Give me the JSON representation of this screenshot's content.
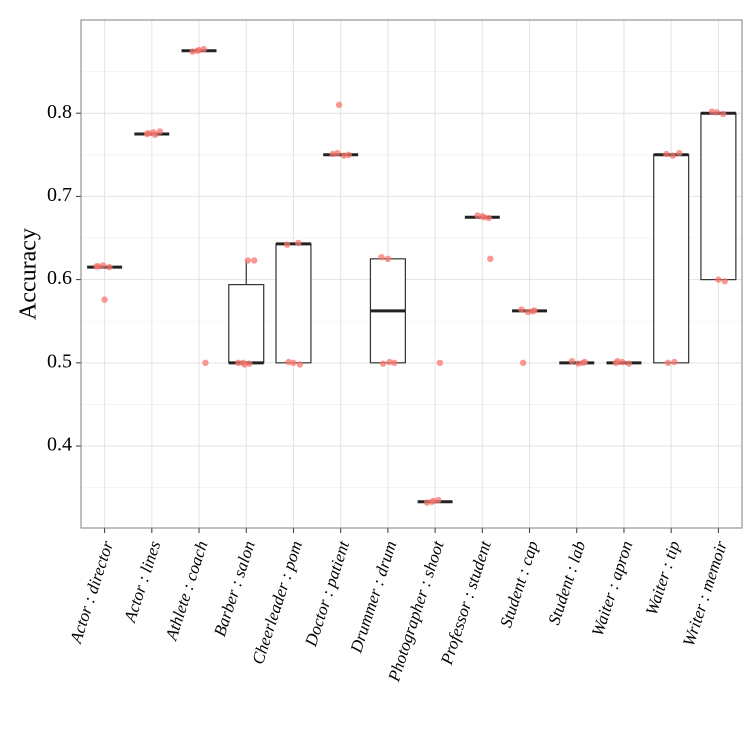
{
  "chart_data": {
    "type": "box",
    "y_label": "Accuracy",
    "categories": [
      "Actor : director",
      "Actor : lines",
      "Athlete : coach",
      "Barber : salon",
      "Cheerleader : pom",
      "Doctor : patient",
      "Drummer : drum",
      "Photographer : shoot",
      "Professor : student",
      "Student : cap",
      "Student : lab",
      "Waiter : apron",
      "Waiter : tip",
      "Writer : memoir"
    ],
    "boxes": [
      {
        "min": 0.615,
        "q1": 0.615,
        "median": 0.615,
        "q3": 0.615,
        "max": 0.615
      },
      {
        "min": 0.775,
        "q1": 0.775,
        "median": 0.775,
        "q3": 0.775,
        "max": 0.775
      },
      {
        "min": 0.875,
        "q1": 0.875,
        "median": 0.875,
        "q3": 0.875,
        "max": 0.875
      },
      {
        "min": 0.5,
        "q1": 0.5,
        "median": 0.5,
        "q3": 0.594,
        "max": 0.623
      },
      {
        "min": 0.5,
        "q1": 0.5,
        "median": 0.643,
        "q3": 0.643,
        "max": 0.643
      },
      {
        "min": 0.75,
        "q1": 0.75,
        "median": 0.75,
        "q3": 0.75,
        "max": 0.75
      },
      {
        "min": 0.5,
        "q1": 0.5,
        "median": 0.5625,
        "q3": 0.625,
        "max": 0.625
      },
      {
        "min": 0.333,
        "q1": 0.333,
        "median": 0.333,
        "q3": 0.333,
        "max": 0.333
      },
      {
        "min": 0.675,
        "q1": 0.675,
        "median": 0.675,
        "q3": 0.675,
        "max": 0.675
      },
      {
        "min": 0.5625,
        "q1": 0.5625,
        "median": 0.5625,
        "q3": 0.5625,
        "max": 0.5625
      },
      {
        "min": 0.5,
        "q1": 0.5,
        "median": 0.5,
        "q3": 0.5,
        "max": 0.5
      },
      {
        "min": 0.5,
        "q1": 0.5,
        "median": 0.5,
        "q3": 0.5,
        "max": 0.5
      },
      {
        "min": 0.5,
        "q1": 0.5,
        "median": 0.75,
        "q3": 0.75,
        "max": 0.75
      },
      {
        "min": 0.6,
        "q1": 0.6,
        "median": 0.8,
        "q3": 0.8,
        "max": 0.8
      }
    ],
    "points": [
      [
        0.616,
        0.617,
        0.615,
        0.616,
        0.576
      ],
      [
        0.775,
        0.777,
        0.778,
        0.776,
        0.774
      ],
      [
        0.875,
        0.877,
        0.874,
        0.876,
        0.5
      ],
      [
        0.623,
        0.623,
        0.5,
        0.499,
        0.5,
        0.498
      ],
      [
        0.644,
        0.642,
        0.5,
        0.498,
        0.501
      ],
      [
        0.75,
        0.752,
        0.749,
        0.751,
        0.81
      ],
      [
        0.627,
        0.625,
        0.5,
        0.499,
        0.501
      ],
      [
        0.333,
        0.335,
        0.332,
        0.334,
        0.5
      ],
      [
        0.676,
        0.674,
        0.677,
        0.675,
        0.625
      ],
      [
        0.562,
        0.564,
        0.561,
        0.563,
        0.5
      ],
      [
        0.5,
        0.502,
        0.499,
        0.501
      ],
      [
        0.5,
        0.501,
        0.499,
        0.502
      ],
      [
        0.751,
        0.749,
        0.752,
        0.5,
        0.501
      ],
      [
        0.801,
        0.799,
        0.802,
        0.6,
        0.598
      ]
    ],
    "point_color": "#f8766d",
    "ylim": [
      0.3015,
      0.912
    ],
    "yticks": [
      0.4,
      0.5,
      0.6,
      0.7,
      0.8
    ],
    "y_minor_ticks": [
      0.35,
      0.45,
      0.55,
      0.65,
      0.75,
      0.85
    ],
    "grid": true
  }
}
